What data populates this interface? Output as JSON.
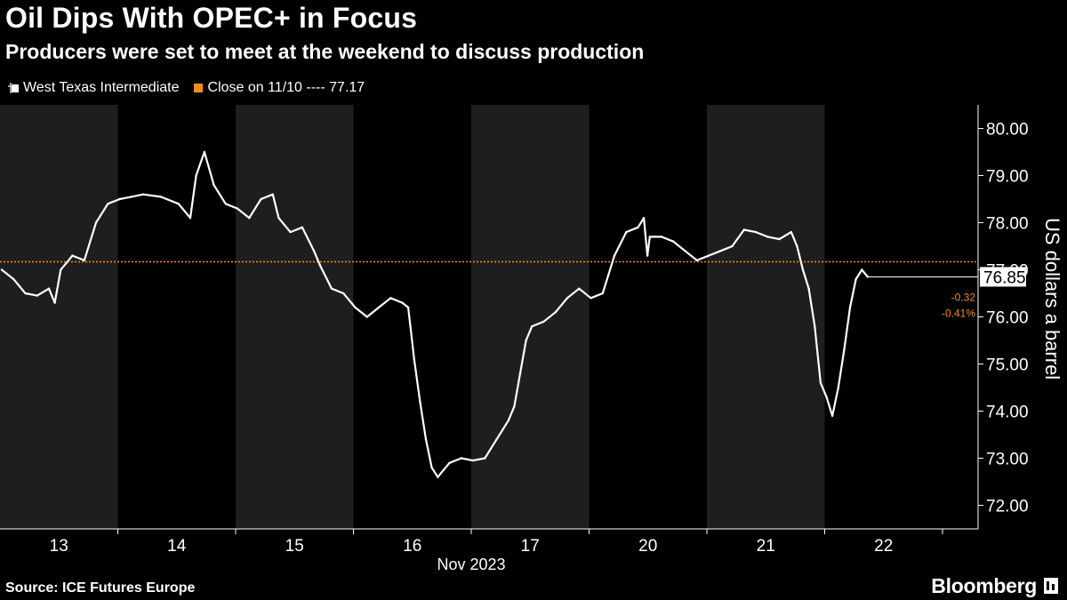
{
  "title": "Oil Dips With OPEC+ in Focus",
  "subtitle": "Producers were set to meet at the weekend to discuss production",
  "legend": {
    "series_label": "West Texas Intermediate",
    "close_label": "Close on 11/10 ---- 77.17"
  },
  "source": "Source: ICE Futures Europe",
  "brand": "Bloomberg",
  "colors": {
    "background": "#000000",
    "band": "#1e1e1e",
    "series": "#ffffff",
    "close_line": "#f28c1e",
    "axis_text": "#ffffff"
  },
  "chart_data": {
    "type": "line",
    "ylabel": "US dollars a barrel",
    "xlabel": "Nov 2023",
    "ylim": [
      71.5,
      80.5
    ],
    "y_ticks": [
      "72.00",
      "73.00",
      "74.00",
      "75.00",
      "76.00",
      "77.00",
      "78.00",
      "79.00",
      "80.00"
    ],
    "categories": [
      "13",
      "14",
      "15",
      "16",
      "17",
      "20",
      "21",
      "22"
    ],
    "reference_line": {
      "label": "Close on 11/10",
      "value": 77.17
    },
    "last": {
      "value": "76.85",
      "change": "-0.32",
      "change_pct": "-0.41%"
    },
    "series": [
      {
        "name": "West Texas Intermediate",
        "points": [
          [
            0.0,
            77.0
          ],
          [
            0.1,
            76.8
          ],
          [
            0.2,
            76.5
          ],
          [
            0.3,
            76.45
          ],
          [
            0.4,
            76.6
          ],
          [
            0.45,
            76.3
          ],
          [
            0.5,
            77.0
          ],
          [
            0.6,
            77.3
          ],
          [
            0.7,
            77.2
          ],
          [
            0.8,
            78.0
          ],
          [
            0.9,
            78.4
          ],
          [
            1.0,
            78.5
          ],
          [
            1.1,
            78.55
          ],
          [
            1.2,
            78.6
          ],
          [
            1.35,
            78.55
          ],
          [
            1.5,
            78.4
          ],
          [
            1.6,
            78.1
          ],
          [
            1.65,
            79.0
          ],
          [
            1.72,
            79.5
          ],
          [
            1.8,
            78.8
          ],
          [
            1.9,
            78.4
          ],
          [
            2.0,
            78.3
          ],
          [
            2.1,
            78.1
          ],
          [
            2.2,
            78.5
          ],
          [
            2.3,
            78.6
          ],
          [
            2.35,
            78.1
          ],
          [
            2.45,
            77.8
          ],
          [
            2.55,
            77.9
          ],
          [
            2.65,
            77.4
          ],
          [
            2.7,
            77.1
          ],
          [
            2.8,
            76.6
          ],
          [
            2.9,
            76.5
          ],
          [
            3.0,
            76.2
          ],
          [
            3.1,
            76.0
          ],
          [
            3.2,
            76.2
          ],
          [
            3.3,
            76.4
          ],
          [
            3.4,
            76.3
          ],
          [
            3.45,
            76.2
          ],
          [
            3.5,
            75.1
          ],
          [
            3.55,
            74.2
          ],
          [
            3.6,
            73.4
          ],
          [
            3.65,
            72.8
          ],
          [
            3.7,
            72.6
          ],
          [
            3.8,
            72.9
          ],
          [
            3.9,
            73.0
          ],
          [
            4.0,
            72.95
          ],
          [
            4.1,
            73.0
          ],
          [
            4.2,
            73.4
          ],
          [
            4.3,
            73.8
          ],
          [
            4.35,
            74.1
          ],
          [
            4.4,
            74.8
          ],
          [
            4.45,
            75.5
          ],
          [
            4.5,
            75.8
          ],
          [
            4.6,
            75.9
          ],
          [
            4.7,
            76.1
          ],
          [
            4.8,
            76.4
          ],
          [
            4.9,
            76.6
          ],
          [
            5.0,
            76.4
          ],
          [
            5.1,
            76.5
          ],
          [
            5.15,
            76.9
          ],
          [
            5.2,
            77.3
          ],
          [
            5.3,
            77.8
          ],
          [
            5.4,
            77.9
          ],
          [
            5.45,
            78.1
          ],
          [
            5.48,
            77.3
          ],
          [
            5.5,
            77.7
          ],
          [
            5.6,
            77.7
          ],
          [
            5.7,
            77.6
          ],
          [
            5.8,
            77.4
          ],
          [
            5.9,
            77.2
          ],
          [
            6.0,
            77.3
          ],
          [
            6.1,
            77.4
          ],
          [
            6.2,
            77.5
          ],
          [
            6.3,
            77.85
          ],
          [
            6.4,
            77.8
          ],
          [
            6.5,
            77.7
          ],
          [
            6.6,
            77.65
          ],
          [
            6.7,
            77.8
          ],
          [
            6.75,
            77.5
          ],
          [
            6.8,
            77.0
          ],
          [
            6.85,
            76.6
          ],
          [
            6.9,
            75.8
          ],
          [
            6.95,
            74.6
          ],
          [
            7.0,
            74.3
          ],
          [
            7.05,
            73.9
          ],
          [
            7.1,
            74.5
          ],
          [
            7.15,
            75.3
          ],
          [
            7.2,
            76.2
          ],
          [
            7.25,
            76.8
          ],
          [
            7.3,
            77.0
          ],
          [
            7.35,
            76.85
          ]
        ]
      }
    ]
  }
}
